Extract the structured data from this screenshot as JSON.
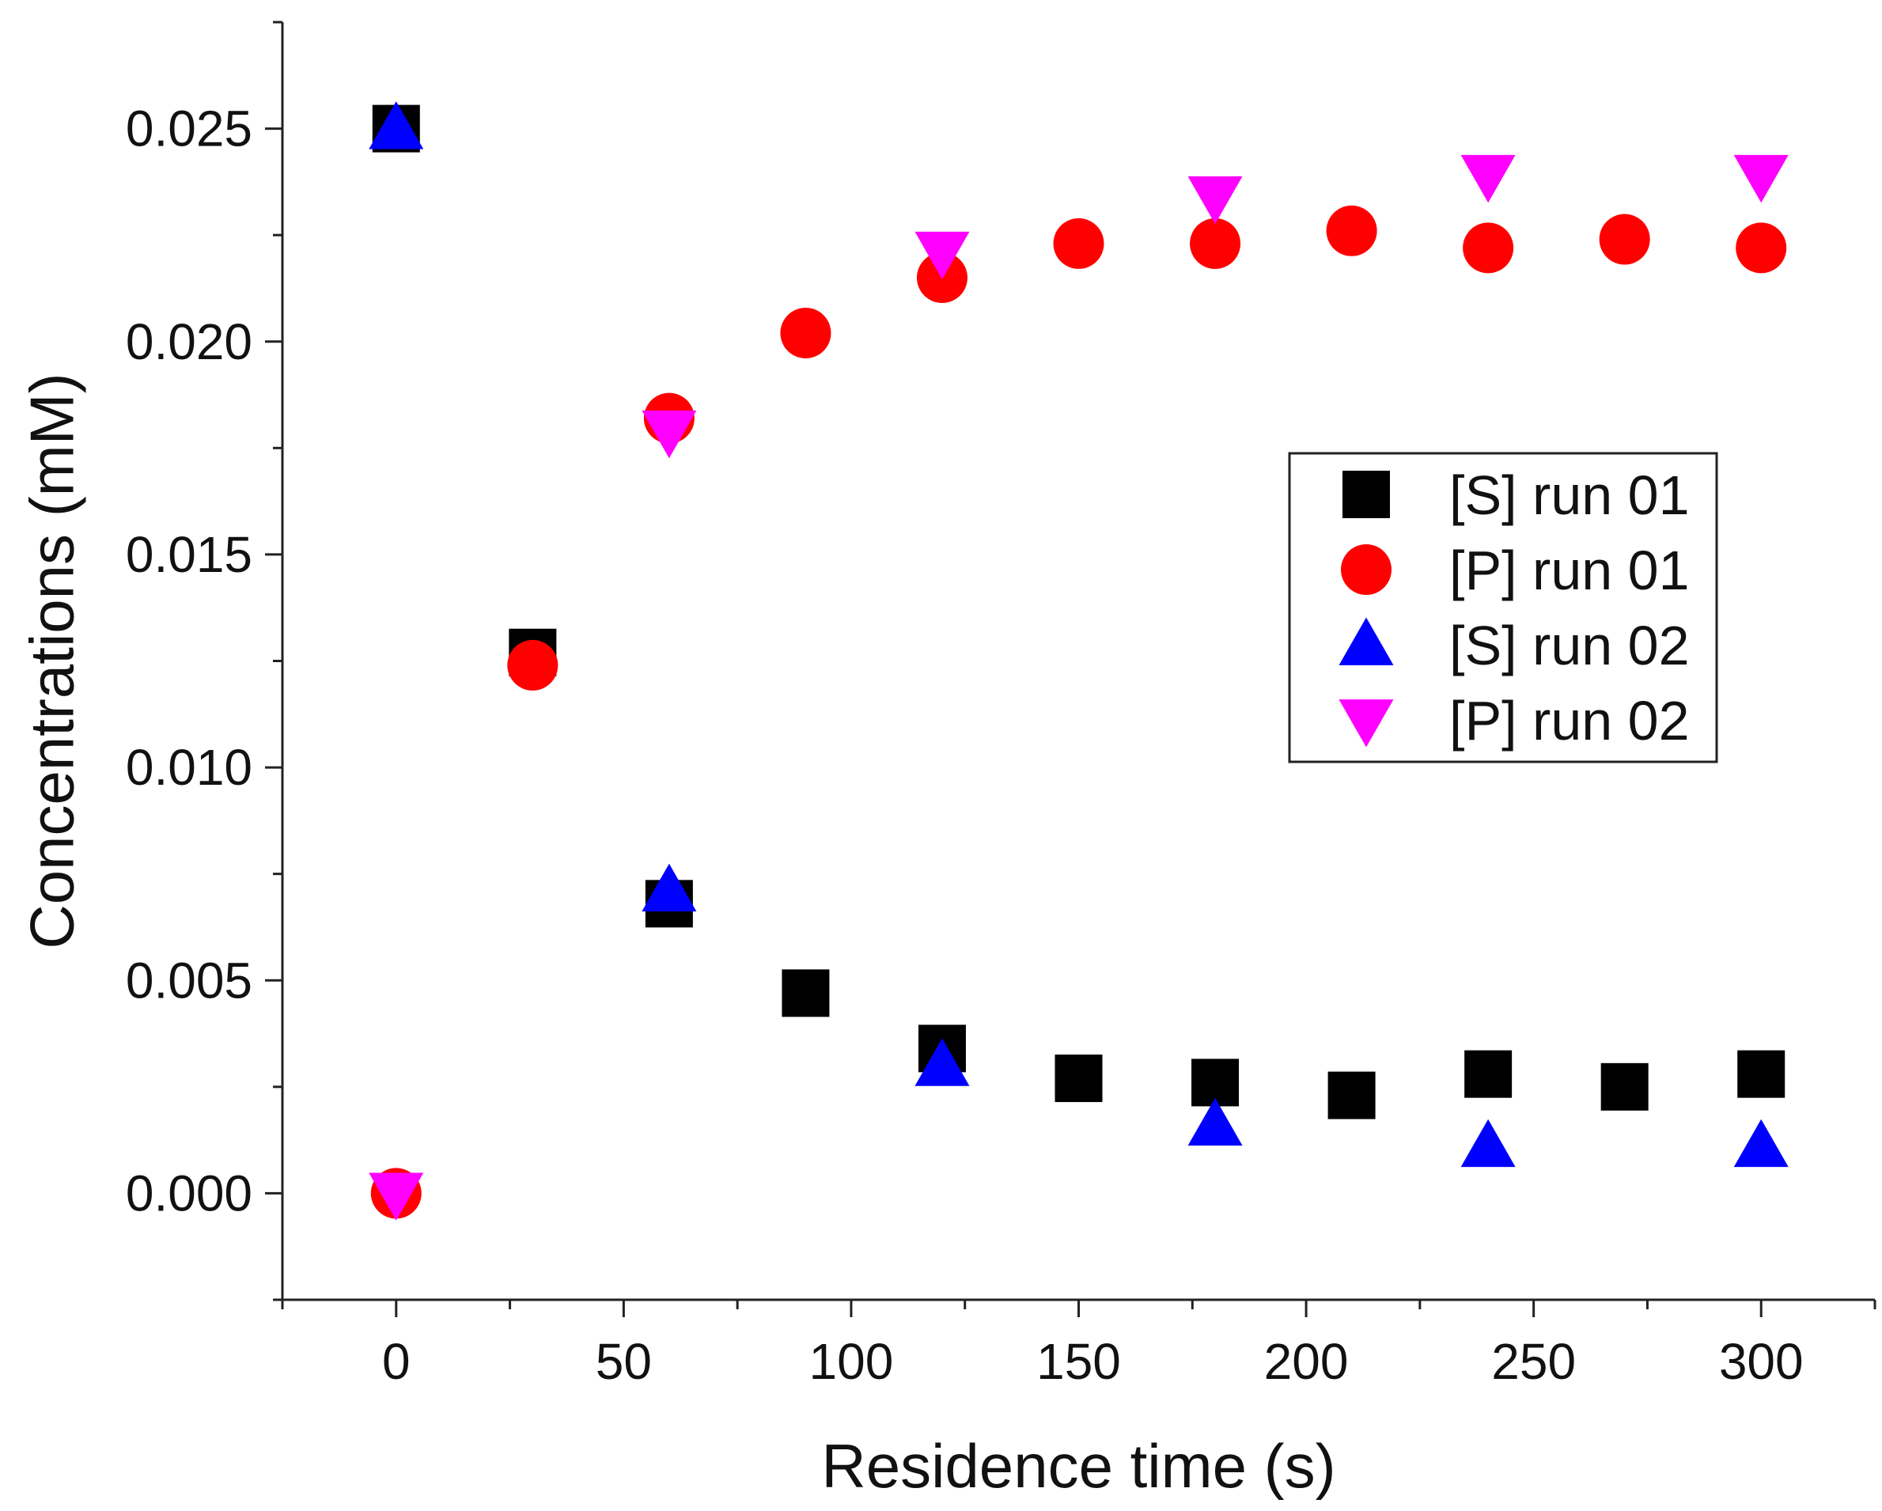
{
  "chart_data": {
    "type": "scatter",
    "title": "",
    "xlabel": "Residence time (s)",
    "ylabel": "Concentrations (mM)",
    "xlim": [
      -25,
      325
    ],
    "ylim": [
      -0.0025,
      0.0275
    ],
    "xticks": [
      0,
      50,
      100,
      150,
      200,
      250,
      300
    ],
    "xtick_labels": [
      "0",
      "50",
      "100",
      "150",
      "200",
      "250",
      "300"
    ],
    "yticks": [
      0.0,
      0.005,
      0.01,
      0.015,
      0.02,
      0.025
    ],
    "ytick_labels": [
      "0.000",
      "0.005",
      "0.010",
      "0.015",
      "0.020",
      "0.025"
    ],
    "grid": false,
    "legend_position": "center-right",
    "series": [
      {
        "name": "[S] run 01",
        "marker": "square",
        "color": "#000000",
        "points": [
          [
            0,
            0.025
          ],
          [
            30,
            0.0127
          ],
          [
            60,
            0.0068
          ],
          [
            90,
            0.0047
          ],
          [
            120,
            0.0034
          ],
          [
            150,
            0.0027
          ],
          [
            180,
            0.0026
          ],
          [
            210,
            0.0023
          ],
          [
            240,
            0.0028
          ],
          [
            270,
            0.0025
          ],
          [
            300,
            0.0028
          ]
        ]
      },
      {
        "name": "[P] run 01",
        "marker": "circle",
        "color": "#ff0000",
        "points": [
          [
            0,
            0.0
          ],
          [
            30,
            0.0124
          ],
          [
            60,
            0.0182
          ],
          [
            90,
            0.0202
          ],
          [
            120,
            0.0215
          ],
          [
            150,
            0.0223
          ],
          [
            180,
            0.0223
          ],
          [
            210,
            0.0226
          ],
          [
            240,
            0.0222
          ],
          [
            270,
            0.0224
          ],
          [
            300,
            0.0222
          ]
        ]
      },
      {
        "name": "[S] run 02",
        "marker": "triangle-up",
        "color": "#0000ff",
        "points": [
          [
            0,
            0.025
          ],
          [
            60,
            0.0071
          ],
          [
            120,
            0.003
          ],
          [
            180,
            0.0016
          ],
          [
            240,
            0.0011
          ],
          [
            300,
            0.0011
          ]
        ]
      },
      {
        "name": "[P] run 02",
        "marker": "triangle-down",
        "color": "#ff00ff",
        "points": [
          [
            0,
            0.0
          ],
          [
            60,
            0.0179
          ],
          [
            120,
            0.0221
          ],
          [
            180,
            0.0234
          ],
          [
            240,
            0.0239
          ],
          [
            300,
            0.0239
          ]
        ]
      }
    ]
  }
}
